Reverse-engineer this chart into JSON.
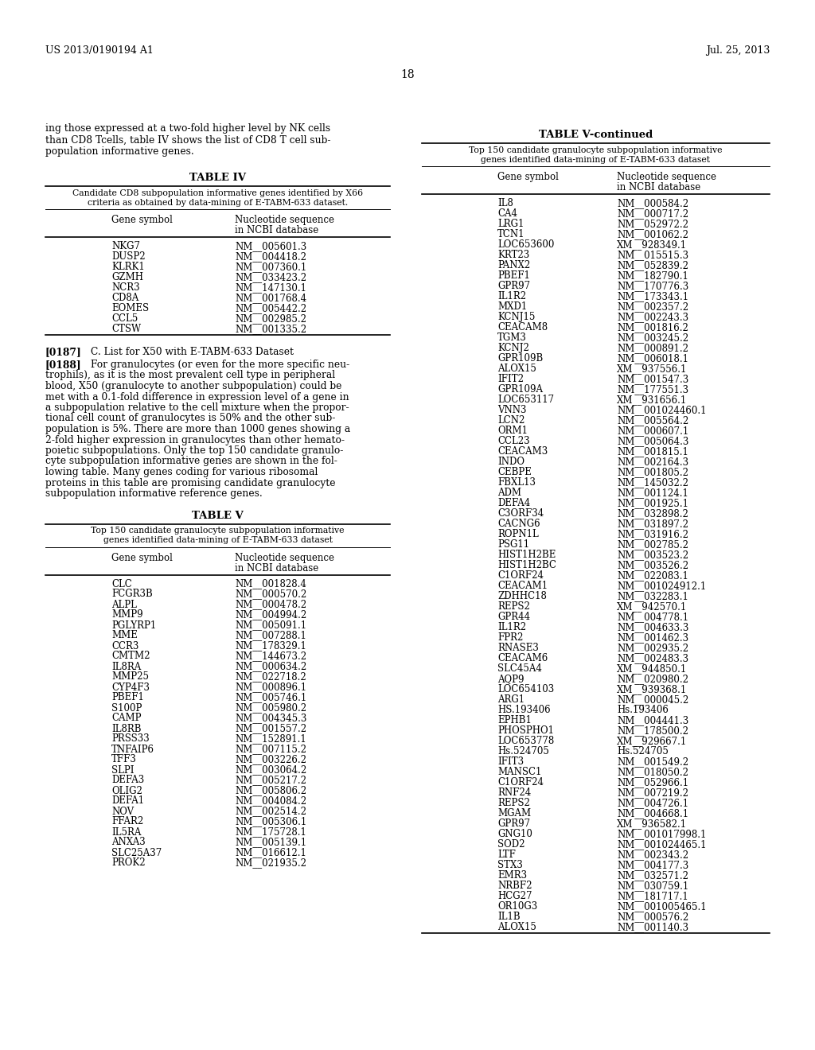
{
  "page_header_left": "US 2013/0190194 A1",
  "page_header_right": "Jul. 25, 2013",
  "page_number": "18",
  "left_intro": "ing those expressed at a two-fold higher level by NK cells\nthan CD8 Tcells, table IV shows the list of CD8 T cell sub-\npopulation informative genes.",
  "table4_title": "TABLE IV",
  "table4_sub1": "Candidate CD8 subpopulation informative genes identified by X66",
  "table4_sub2": "criteria as obtained by data-mining of E-TABM-633 dataset.",
  "col1_header": "Gene symbol",
  "col2_header1": "Nucleotide sequence",
  "col2_header2": "in NCBI database",
  "table4_rows": [
    [
      "NKG7",
      "NM__005601.3"
    ],
    [
      "DUSP2",
      "NM__004418.2"
    ],
    [
      "KLRK1",
      "NM__007360.1"
    ],
    [
      "GZMH",
      "NM__033423.2"
    ],
    [
      "NCR3",
      "NM__147130.1"
    ],
    [
      "CD8A",
      "NM__001768.4"
    ],
    [
      "EOMES",
      "NM__005442.2"
    ],
    [
      "CCL5",
      "NM__002985.2"
    ],
    [
      "CTSW",
      "NM__001335.2"
    ]
  ],
  "para187_label": "[0187]",
  "para187_rest": "C. List for X50 with E-TABM-633 Dataset",
  "para188_label": "[0188]",
  "para188_lines": [
    "For granulocytes (or even for the more specific neu-",
    "trophils), as it is the most prevalent cell type in peripheral",
    "blood, X50 (granulocyte to another subpopulation) could be",
    "met with a 0.1-fold difference in expression level of a gene in",
    "a subpopulation relative to the cell mixture when the propor-",
    "tional cell count of granulocytes is 50% and the other sub-",
    "population is 5%. There are more than 1000 genes showing a",
    "2-fold higher expression in granulocytes than other hemato-",
    "poietic subpopulations. Only the top 150 candidate granulo-",
    "cyte subpopulation informative genes are shown in the fol-",
    "lowing table. Many genes coding for various ribosomal",
    "proteins in this table are promising candidate granulocyte",
    "subpopulation informative reference genes."
  ],
  "table5_title": "TABLE V",
  "table5_sub1": "Top 150 candidate granulocyte subpopulation informative",
  "table5_sub2": "genes identified data-mining of E-TABM-633 dataset",
  "table5_rows": [
    [
      "CLC",
      "NM__001828.4"
    ],
    [
      "FCGR3B",
      "NM__000570.2"
    ],
    [
      "ALPL",
      "NM__000478.2"
    ],
    [
      "MMP9",
      "NM__004994.2"
    ],
    [
      "PGLYRP1",
      "NM__005091.1"
    ],
    [
      "MME",
      "NM__007288.1"
    ],
    [
      "CCR3",
      "NM__178329.1"
    ],
    [
      "CMTM2",
      "NM__144673.2"
    ],
    [
      "IL8RA",
      "NM__000634.2"
    ],
    [
      "MMP25",
      "NM__022718.2"
    ],
    [
      "CYP4F3",
      "NM__000896.1"
    ],
    [
      "PBEF1",
      "NM__005746.1"
    ],
    [
      "S100P",
      "NM__005980.2"
    ],
    [
      "CAMP",
      "NM__004345.3"
    ],
    [
      "IL8RB",
      "NM__001557.2"
    ],
    [
      "PRSS33",
      "NM__152891.1"
    ],
    [
      "TNFAIP6",
      "NM__007115.2"
    ],
    [
      "TFF3",
      "NM__003226.2"
    ],
    [
      "SLPI",
      "NM__003064.2"
    ],
    [
      "DEFA3",
      "NM__005217.2"
    ],
    [
      "OLIG2",
      "NM__005806.2"
    ],
    [
      "DEFA1",
      "NM__004084.2"
    ],
    [
      "NOV",
      "NM__002514.2"
    ],
    [
      "FFAR2",
      "NM__005306.1"
    ],
    [
      "IL5RA",
      "NM__175728.1"
    ],
    [
      "ANXA3",
      "NM__005139.1"
    ],
    [
      "SLC25A37",
      "NM__016612.1"
    ],
    [
      "PROK2",
      "NM__021935.2"
    ]
  ],
  "table5cont_title": "TABLE V-continued",
  "table5cont_sub1": "Top 150 candidate granulocyte subpopulation informative",
  "table5cont_sub2": "genes identified data-mining of E-TABM-633 dataset",
  "table5cont_rows": [
    [
      "IL8",
      "NM__000584.2"
    ],
    [
      "CA4",
      "NM__000717.2"
    ],
    [
      "LRG1",
      "NM__052972.2"
    ],
    [
      "TCN1",
      "NM__001062.2"
    ],
    [
      "LOC653600",
      "XM__928349.1"
    ],
    [
      "KRT23",
      "NM__015515.3"
    ],
    [
      "PANX2",
      "NM__052839.2"
    ],
    [
      "PBEF1",
      "NM__182790.1"
    ],
    [
      "GPR97",
      "NM__170776.3"
    ],
    [
      "IL1R2",
      "NM__173343.1"
    ],
    [
      "MXD1",
      "NM__002357.2"
    ],
    [
      "KCNJ15",
      "NM__002243.3"
    ],
    [
      "CEACAM8",
      "NM__001816.2"
    ],
    [
      "TGM3",
      "NM__003245.2"
    ],
    [
      "KCNJ2",
      "NM__000891.2"
    ],
    [
      "GPR109B",
      "NM__006018.1"
    ],
    [
      "ALOX15",
      "XM__937556.1"
    ],
    [
      "IFIT2",
      "NM__001547.3"
    ],
    [
      "GPR109A",
      "NM__177551.3"
    ],
    [
      "LOC653117",
      "XM__931656.1"
    ],
    [
      "VNN3",
      "NM__001024460.1"
    ],
    [
      "LCN2",
      "NM__005564.2"
    ],
    [
      "ORM1",
      "NM__000607.1"
    ],
    [
      "CCL23",
      "NM__005064.3"
    ],
    [
      "CEACAM3",
      "NM__001815.1"
    ],
    [
      "INDO",
      "NM__002164.3"
    ],
    [
      "CEBPE",
      "NM__001805.2"
    ],
    [
      "FBXL13",
      "NM__145032.2"
    ],
    [
      "ADM",
      "NM__001124.1"
    ],
    [
      "DEFA4",
      "NM__001925.1"
    ],
    [
      "C3ORF34",
      "NM__032898.2"
    ],
    [
      "CACNG6",
      "NM__031897.2"
    ],
    [
      "ROPN1L",
      "NM__031916.2"
    ],
    [
      "PSG11",
      "NM__002785.2"
    ],
    [
      "HIST1H2BE",
      "NM__003523.2"
    ],
    [
      "HIST1H2BC",
      "NM__003526.2"
    ],
    [
      "C1ORF24",
      "NM__022083.1"
    ],
    [
      "CEACAM1",
      "NM__001024912.1"
    ],
    [
      "ZDHHC18",
      "NM__032283.1"
    ],
    [
      "REPS2",
      "XM__942570.1"
    ],
    [
      "GPR44",
      "NM__004778.1"
    ],
    [
      "IL1R2",
      "NM__004633.3"
    ],
    [
      "FPR2",
      "NM__001462.3"
    ],
    [
      "RNASE3",
      "NM__002935.2"
    ],
    [
      "CEACAM6",
      "NM__002483.3"
    ],
    [
      "SLC45A4",
      "XM__944850.1"
    ],
    [
      "AQP9",
      "NM__020980.2"
    ],
    [
      "LOC654103",
      "XM__939368.1"
    ],
    [
      "ARG1",
      "NM__000045.2"
    ],
    [
      "HS.193406",
      "Hs.193406"
    ],
    [
      "EPHB1",
      "NM__004441.3"
    ],
    [
      "PHOSPHO1",
      "NM__178500.2"
    ],
    [
      "LOC653778",
      "XM__929667.1"
    ],
    [
      "Hs.524705",
      "Hs.524705"
    ],
    [
      "IFIT3",
      "NM__001549.2"
    ],
    [
      "MANSC1",
      "NM__018050.2"
    ],
    [
      "C1ORF24",
      "NM__052966.1"
    ],
    [
      "RNF24",
      "NM__007219.2"
    ],
    [
      "REPS2",
      "NM__004726.1"
    ],
    [
      "MGAM",
      "NM__004668.1"
    ],
    [
      "GPR97",
      "XM__936582.1"
    ],
    [
      "GNG10",
      "NM__001017998.1"
    ],
    [
      "SOD2",
      "NM__001024465.1"
    ],
    [
      "LTF",
      "NM__002343.2"
    ],
    [
      "STX3",
      "NM__004177.3"
    ],
    [
      "EMR3",
      "NM__032571.2"
    ],
    [
      "NRBF2",
      "NM__030759.1"
    ],
    [
      "HCG27",
      "NM__181717.1"
    ],
    [
      "OR10G3",
      "NM__001005465.1"
    ],
    [
      "IL1B",
      "NM__000576.2"
    ],
    [
      "ALOX15",
      "NM__001140.3"
    ]
  ]
}
